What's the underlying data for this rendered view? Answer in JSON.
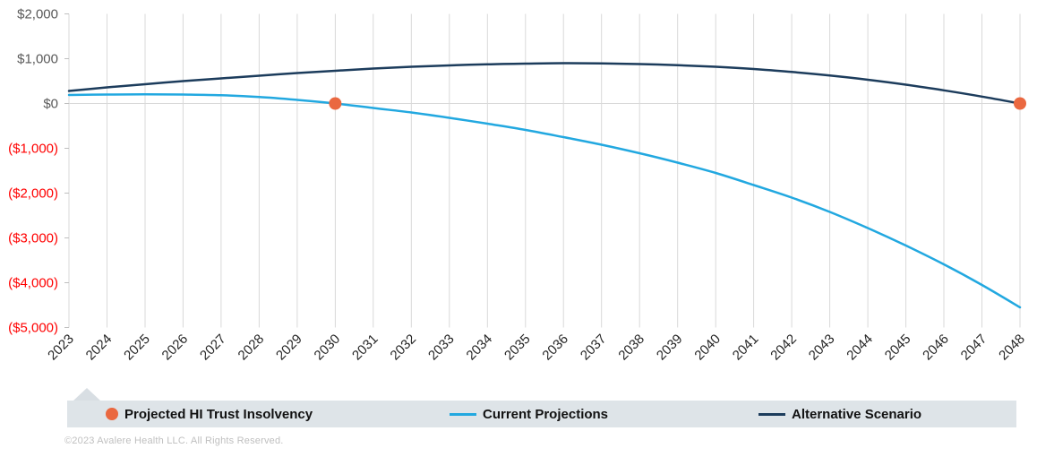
{
  "chart_data": {
    "type": "line",
    "title": "",
    "x": [
      2023,
      2024,
      2025,
      2026,
      2027,
      2028,
      2029,
      2030,
      2031,
      2032,
      2033,
      2034,
      2035,
      2036,
      2037,
      2038,
      2039,
      2040,
      2041,
      2042,
      2043,
      2044,
      2045,
      2046,
      2047,
      2048
    ],
    "series": [
      {
        "name": "Current Projections",
        "color": "#22A8E0",
        "values": [
          190,
          200,
          205,
          200,
          185,
          145,
          80,
          0,
          -100,
          -200,
          -320,
          -450,
          -590,
          -750,
          -920,
          -1110,
          -1320,
          -1550,
          -1820,
          -2100,
          -2420,
          -2780,
          -3170,
          -3590,
          -4050,
          -4550
        ]
      },
      {
        "name": "Alternative Scenario",
        "color": "#1C3C5C",
        "values": [
          280,
          360,
          430,
          500,
          560,
          620,
          680,
          730,
          780,
          820,
          850,
          875,
          890,
          900,
          895,
          880,
          855,
          820,
          770,
          705,
          625,
          530,
          420,
          295,
          155,
          0
        ]
      }
    ],
    "markers": {
      "name": "Projected HI Trust Insolvency",
      "color": "#EA6840",
      "points": [
        {
          "year": 2030,
          "value": 0
        },
        {
          "year": 2048,
          "value": 0
        }
      ]
    },
    "y_axis": {
      "min": -5000,
      "max": 2000,
      "step": 1000,
      "tick_labels": [
        "$2,000",
        "$1,000",
        "$0",
        "($1,000)",
        "($2,000)",
        "($3,000)",
        "($4,000)",
        "($5,000)"
      ],
      "positive_color": "#595959",
      "negative_color": "#FF0000"
    },
    "x_axis": {
      "labels": [
        "2023",
        "2024",
        "2025",
        "2026",
        "2027",
        "2028",
        "2029",
        "2030",
        "2031",
        "2032",
        "2033",
        "2034",
        "2035",
        "2036",
        "2037",
        "2038",
        "2039",
        "2040",
        "2041",
        "2042",
        "2043",
        "2044",
        "2045",
        "2046",
        "2047",
        "2048"
      ],
      "label_color": "#262626",
      "label_rotation": -45
    },
    "gridline_color": "#D9D9D9",
    "axis_color": "#BFBFBF",
    "grid": "vertical-only-plus-zero-line",
    "legend_position": "bottom"
  },
  "legend": {
    "background": "#DEE4E8",
    "notch_color": "#D8DEE3",
    "items": [
      {
        "label": "Projected HI Trust Insolvency",
        "swatch": "dot",
        "color": "#EA6840"
      },
      {
        "label": "Current Projections",
        "swatch": "line",
        "color": "#22A8E0"
      },
      {
        "label": "Alternative Scenario",
        "swatch": "line",
        "color": "#1C3C5C"
      }
    ]
  },
  "footer": {
    "copyright": "©2023 Avalere Health LLC.  All Rights Reserved."
  }
}
